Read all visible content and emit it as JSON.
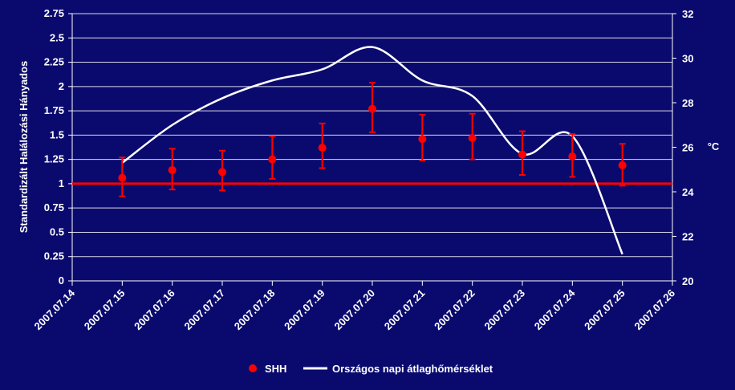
{
  "chart_data": {
    "type": "line",
    "x_ticks": [
      "2007.07.14",
      "2007.07.15",
      "2007.07.16",
      "2007.07.17",
      "2007.07.18",
      "2007.07.19",
      "2007.07.20",
      "2007.07.21",
      "2007.07.22",
      "2007.07.23",
      "2007.07.24",
      "2007.07.25",
      "2007.07.26"
    ],
    "y_left": {
      "label": "Standardizált Halálozási Hányados",
      "ylim": [
        0,
        2.75
      ],
      "ticks": [
        "0",
        "0.25",
        "0.5",
        "0.75",
        "1",
        "1.25",
        "1.5",
        "1.75",
        "2",
        "2.25",
        "2.5",
        "2.75"
      ]
    },
    "y_right": {
      "label": "°C",
      "ylim": [
        20,
        32
      ],
      "ticks": [
        "20",
        "22",
        "24",
        "26",
        "28",
        "30",
        "32"
      ]
    },
    "grid": true,
    "legend_position": "bottom",
    "reference_line": {
      "value": 1,
      "color": "#ff0000"
    },
    "series": [
      {
        "name": "SHH",
        "kind": "points-with-error-bars",
        "axis": "left",
        "color": "#ff0000",
        "x": [
          "2007.07.15",
          "2007.07.16",
          "2007.07.17",
          "2007.07.18",
          "2007.07.19",
          "2007.07.20",
          "2007.07.21",
          "2007.07.22",
          "2007.07.23",
          "2007.07.24",
          "2007.07.25"
        ],
        "values": [
          1.06,
          1.14,
          1.12,
          1.25,
          1.37,
          1.77,
          1.46,
          1.47,
          1.3,
          1.28,
          1.19
        ],
        "lower": [
          0.87,
          0.94,
          0.93,
          1.05,
          1.16,
          1.53,
          1.24,
          1.25,
          1.09,
          1.07,
          0.98
        ],
        "upper": [
          1.27,
          1.36,
          1.34,
          1.49,
          1.62,
          2.04,
          1.71,
          1.72,
          1.54,
          1.51,
          1.41
        ]
      },
      {
        "name": "Országos napi átlaghőmérséklet",
        "kind": "smooth-line",
        "axis": "right",
        "color": "#ffffff",
        "x": [
          "2007.07.15",
          "2007.07.16",
          "2007.07.17",
          "2007.07.18",
          "2007.07.19",
          "2007.07.20",
          "2007.07.21",
          "2007.07.22",
          "2007.07.23",
          "2007.07.24",
          "2007.07.25"
        ],
        "values": [
          25.3,
          27.0,
          28.2,
          29.0,
          29.5,
          30.5,
          29.0,
          28.3,
          25.7,
          26.5,
          21.2
        ]
      }
    ]
  },
  "legend": {
    "items": [
      {
        "label": "SHH",
        "color": "#ff0000"
      },
      {
        "label": "Országos napi átlaghőmérséklet",
        "color": "#ffffff"
      }
    ]
  }
}
